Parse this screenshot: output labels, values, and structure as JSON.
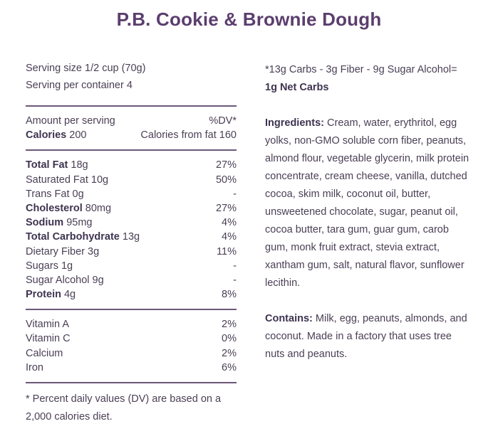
{
  "title": "P.B. Cookie & Brownie Dough",
  "serving": {
    "size": "Serving size 1/2 cup (70g)",
    "per_container": "Serving per container 4"
  },
  "header": {
    "amount_label": "Amount per serving",
    "dv_label": "%DV*",
    "calories_label": "Calories",
    "calories_value": "200",
    "calories_from_fat": "Calories from fat 160"
  },
  "nutrients": [
    {
      "label": "Total Fat",
      "value": "18g",
      "dv": "27%",
      "bold": true
    },
    {
      "label": "Saturated Fat",
      "value": "10g",
      "dv": "50%",
      "bold": false
    },
    {
      "label": "Trans Fat",
      "value": "0g",
      "dv": "-",
      "bold": false
    },
    {
      "label": "Cholesterol",
      "value": "80mg",
      "dv": "27%",
      "bold": true
    },
    {
      "label": "Sodium",
      "value": "95mg",
      "dv": "4%",
      "bold": true
    },
    {
      "label": "Total Carbohydrate",
      "value": "13g",
      "dv": "4%",
      "bold": true
    },
    {
      "label": "Dietary Fiber",
      "value": "3g",
      "dv": "11%",
      "bold": false
    },
    {
      "label": "Sugars",
      "value": "1g",
      "dv": "-",
      "bold": false
    },
    {
      "label": "Sugar Alcohol",
      "value": "9g",
      "dv": "-",
      "bold": false
    },
    {
      "label": "Protein",
      "value": "4g",
      "dv": "8%",
      "bold": true
    }
  ],
  "vitamins": [
    {
      "label": "Vitamin A",
      "dv": "2%"
    },
    {
      "label": "Vitamin C",
      "dv": "0%"
    },
    {
      "label": "Calcium",
      "dv": "2%"
    },
    {
      "label": "Iron",
      "dv": "6%"
    }
  ],
  "footnote": "* Percent daily values (DV) are based on a 2,000 calories diet.",
  "net_carbs": {
    "formula": "*13g Carbs - 3g Fiber - 9g Sugar Alcohol=",
    "result": "1g Net Carbs"
  },
  "ingredients": {
    "label": "Ingredients:",
    "text": " Cream, water, erythritol, egg yolks, non-GMO soluble corn fiber, peanuts, almond flour, vegetable glycerin, milk protein concentrate, cream cheese, vanilla, dutched cocoa, skim milk, coconut oil, butter, unsweetened chocolate, sugar, peanut oil, cocoa butter, tara gum, guar gum, carob gum, monk fruit extract, stevia extract, xantham gum, salt, natural flavor, sunflower lecithin."
  },
  "contains": {
    "label": "Contains:",
    "text": " Milk, egg, peanuts, almonds, and coconut. Made in a factory that uses tree nuts and peanuts."
  }
}
